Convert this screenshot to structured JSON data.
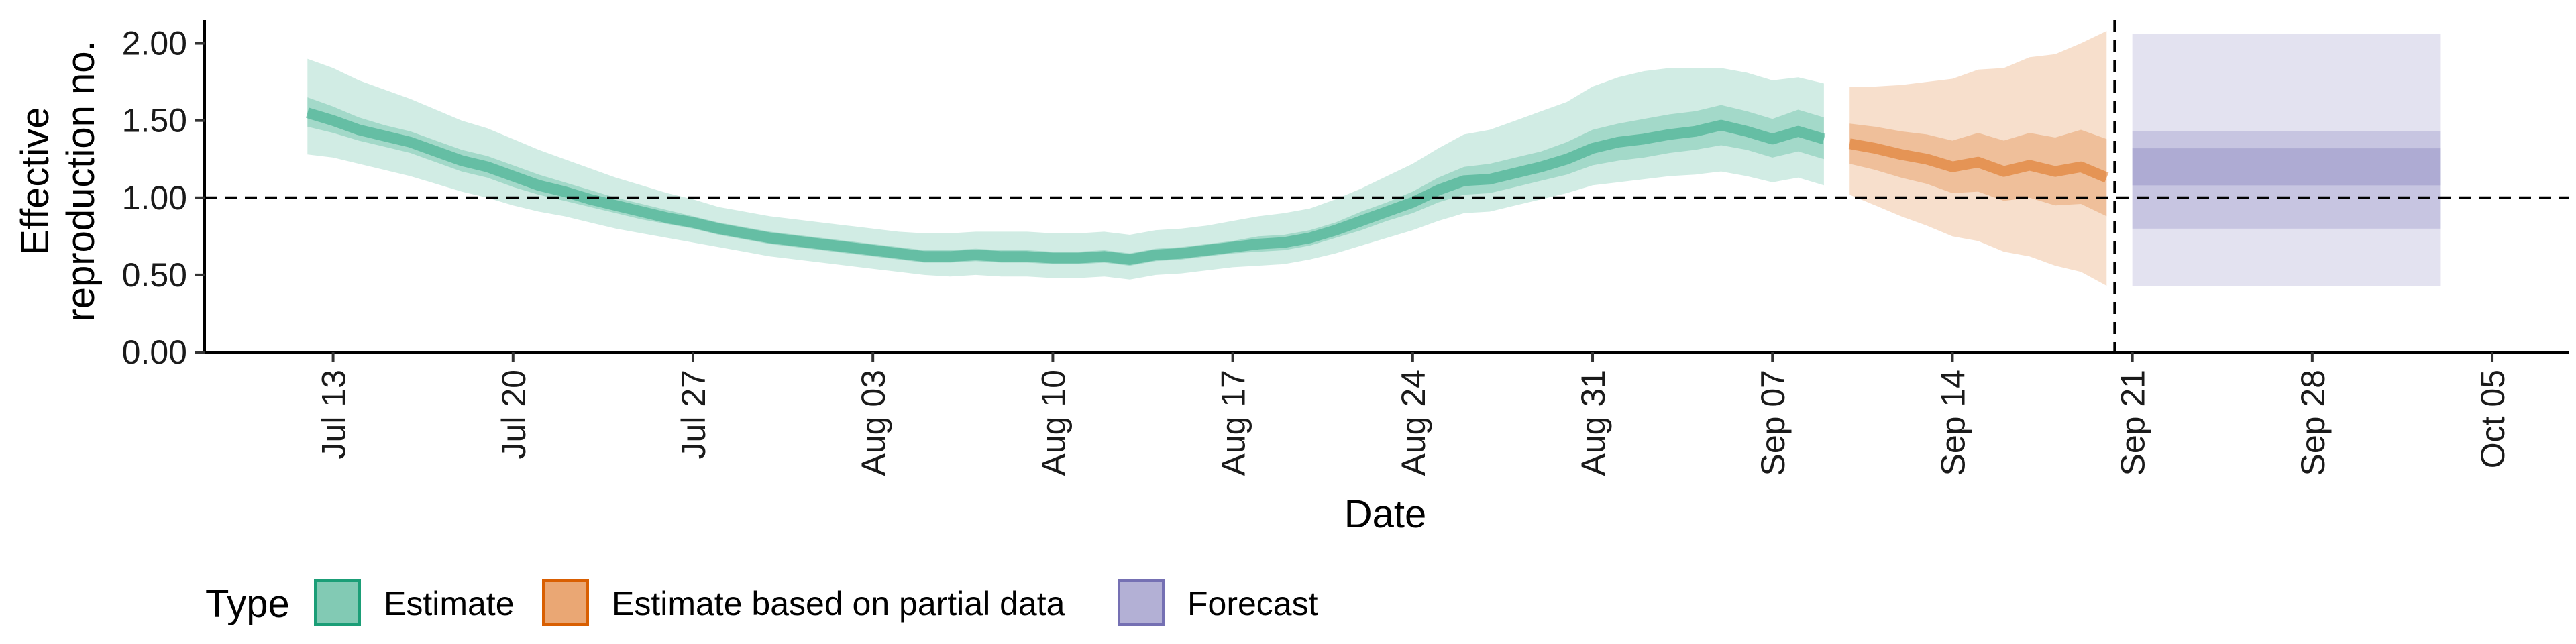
{
  "chart_data": {
    "type": "area",
    "xlabel": "Date",
    "ylabel_lines": [
      "Effective",
      "reproduction no."
    ],
    "ylim": [
      0,
      2.15
    ],
    "y_ticks": [
      0,
      0.5,
      1.0,
      1.5,
      2.0
    ],
    "y_tick_labels": [
      "0.00",
      "0.50",
      "1.00",
      "1.50",
      "2.00"
    ],
    "x_range": [
      "2020-07-08",
      "2020-10-08"
    ],
    "x_ticks": [
      "2020-07-13",
      "2020-07-20",
      "2020-07-27",
      "2020-08-03",
      "2020-08-10",
      "2020-08-17",
      "2020-08-24",
      "2020-08-31",
      "2020-09-07",
      "2020-09-14",
      "2020-09-21",
      "2020-09-28",
      "2020-10-05"
    ],
    "x_tick_labels": [
      "Jul 13",
      "Jul 20",
      "Jul 27",
      "Aug 03",
      "Aug 10",
      "Aug 17",
      "Aug 24",
      "Aug 31",
      "Sep 07",
      "Sep 14",
      "Sep 21",
      "Sep 28",
      "Oct 05"
    ],
    "reference_hline": 1.0,
    "reference_vline": "2020-09-20",
    "grid": false,
    "legend": {
      "title": "Type",
      "position": "bottom-left",
      "entries": [
        {
          "label": "Estimate",
          "fill": "#1b9e77",
          "border": "#1b9e77"
        },
        {
          "label": "Estimate based on partial data",
          "fill": "#d95f02",
          "border": "#d95f02"
        },
        {
          "label": "Forecast",
          "fill": "#7570b3",
          "border": "#7570b3"
        }
      ]
    },
    "series": [
      {
        "name": "Estimate",
        "color": "#1b9e77",
        "x": [
          "2020-07-12",
          "2020-07-13",
          "2020-07-14",
          "2020-07-15",
          "2020-07-16",
          "2020-07-17",
          "2020-07-18",
          "2020-07-19",
          "2020-07-20",
          "2020-07-21",
          "2020-07-22",
          "2020-07-23",
          "2020-07-24",
          "2020-07-25",
          "2020-07-26",
          "2020-07-27",
          "2020-07-28",
          "2020-07-29",
          "2020-07-30",
          "2020-07-31",
          "2020-08-01",
          "2020-08-02",
          "2020-08-03",
          "2020-08-04",
          "2020-08-05",
          "2020-08-06",
          "2020-08-07",
          "2020-08-08",
          "2020-08-09",
          "2020-08-10",
          "2020-08-11",
          "2020-08-12",
          "2020-08-13",
          "2020-08-14",
          "2020-08-15",
          "2020-08-16",
          "2020-08-17",
          "2020-08-18",
          "2020-08-19",
          "2020-08-20",
          "2020-08-21",
          "2020-08-22",
          "2020-08-23",
          "2020-08-24",
          "2020-08-25",
          "2020-08-26",
          "2020-08-27",
          "2020-08-28",
          "2020-08-29",
          "2020-08-30",
          "2020-08-31",
          "2020-09-01",
          "2020-09-02",
          "2020-09-03",
          "2020-09-04",
          "2020-09-05",
          "2020-09-06",
          "2020-09-07",
          "2020-09-08",
          "2020-09-09"
        ],
        "median": [
          1.55,
          1.5,
          1.44,
          1.4,
          1.36,
          1.3,
          1.24,
          1.2,
          1.14,
          1.08,
          1.04,
          0.99,
          0.95,
          0.91,
          0.87,
          0.84,
          0.8,
          0.77,
          0.74,
          0.72,
          0.7,
          0.68,
          0.66,
          0.64,
          0.62,
          0.62,
          0.63,
          0.62,
          0.62,
          0.61,
          0.61,
          0.62,
          0.6,
          0.63,
          0.64,
          0.66,
          0.68,
          0.7,
          0.71,
          0.74,
          0.79,
          0.85,
          0.91,
          0.97,
          1.05,
          1.11,
          1.12,
          1.16,
          1.2,
          1.25,
          1.32,
          1.36,
          1.38,
          1.41,
          1.43,
          1.47,
          1.43,
          1.38,
          1.43,
          1.38
        ],
        "lower50": [
          1.46,
          1.42,
          1.37,
          1.33,
          1.29,
          1.23,
          1.17,
          1.13,
          1.07,
          1.02,
          0.98,
          0.94,
          0.9,
          0.86,
          0.83,
          0.8,
          0.76,
          0.73,
          0.7,
          0.68,
          0.66,
          0.64,
          0.62,
          0.6,
          0.58,
          0.58,
          0.59,
          0.58,
          0.58,
          0.57,
          0.57,
          0.58,
          0.56,
          0.59,
          0.6,
          0.62,
          0.64,
          0.65,
          0.66,
          0.69,
          0.74,
          0.79,
          0.85,
          0.9,
          0.97,
          1.02,
          1.03,
          1.07,
          1.11,
          1.15,
          1.21,
          1.24,
          1.26,
          1.29,
          1.31,
          1.34,
          1.31,
          1.26,
          1.3,
          1.25
        ],
        "upper50": [
          1.65,
          1.59,
          1.52,
          1.47,
          1.43,
          1.37,
          1.31,
          1.27,
          1.21,
          1.15,
          1.1,
          1.05,
          1.0,
          0.96,
          0.92,
          0.88,
          0.84,
          0.81,
          0.78,
          0.76,
          0.74,
          0.72,
          0.7,
          0.68,
          0.66,
          0.66,
          0.67,
          0.66,
          0.66,
          0.65,
          0.65,
          0.66,
          0.64,
          0.67,
          0.68,
          0.7,
          0.72,
          0.75,
          0.76,
          0.79,
          0.84,
          0.91,
          0.97,
          1.04,
          1.13,
          1.2,
          1.22,
          1.26,
          1.3,
          1.36,
          1.44,
          1.48,
          1.51,
          1.54,
          1.56,
          1.6,
          1.56,
          1.51,
          1.57,
          1.52
        ],
        "lower90": [
          1.28,
          1.26,
          1.22,
          1.18,
          1.14,
          1.09,
          1.04,
          1.0,
          0.95,
          0.91,
          0.88,
          0.84,
          0.8,
          0.77,
          0.74,
          0.71,
          0.68,
          0.65,
          0.62,
          0.6,
          0.58,
          0.56,
          0.54,
          0.52,
          0.5,
          0.49,
          0.5,
          0.49,
          0.49,
          0.48,
          0.48,
          0.49,
          0.47,
          0.5,
          0.51,
          0.53,
          0.55,
          0.56,
          0.57,
          0.6,
          0.64,
          0.69,
          0.74,
          0.79,
          0.85,
          0.9,
          0.91,
          0.95,
          0.99,
          1.03,
          1.08,
          1.1,
          1.12,
          1.14,
          1.15,
          1.17,
          1.14,
          1.1,
          1.13,
          1.08
        ],
        "upper90": [
          1.9,
          1.84,
          1.76,
          1.7,
          1.64,
          1.57,
          1.5,
          1.45,
          1.38,
          1.31,
          1.25,
          1.19,
          1.13,
          1.08,
          1.03,
          0.99,
          0.94,
          0.91,
          0.88,
          0.86,
          0.84,
          0.82,
          0.8,
          0.78,
          0.77,
          0.77,
          0.78,
          0.78,
          0.78,
          0.77,
          0.77,
          0.78,
          0.76,
          0.79,
          0.8,
          0.82,
          0.85,
          0.88,
          0.9,
          0.93,
          0.99,
          1.06,
          1.14,
          1.22,
          1.32,
          1.41,
          1.44,
          1.5,
          1.56,
          1.62,
          1.72,
          1.78,
          1.82,
          1.84,
          1.84,
          1.84,
          1.81,
          1.76,
          1.78,
          1.74
        ]
      },
      {
        "name": "Estimate based on partial data",
        "color": "#d95f02",
        "x": [
          "2020-09-10",
          "2020-09-11",
          "2020-09-12",
          "2020-09-13",
          "2020-09-14",
          "2020-09-15",
          "2020-09-16",
          "2020-09-17",
          "2020-09-18",
          "2020-09-19",
          "2020-09-20"
        ],
        "median": [
          1.35,
          1.32,
          1.28,
          1.25,
          1.2,
          1.23,
          1.17,
          1.21,
          1.17,
          1.2,
          1.13
        ],
        "lower50": [
          1.22,
          1.18,
          1.13,
          1.09,
          1.03,
          1.04,
          0.98,
          1.0,
          0.95,
          0.96,
          0.88
        ],
        "upper50": [
          1.48,
          1.46,
          1.43,
          1.41,
          1.37,
          1.42,
          1.37,
          1.42,
          1.39,
          1.44,
          1.38
        ],
        "lower90": [
          1.02,
          0.95,
          0.88,
          0.82,
          0.75,
          0.72,
          0.65,
          0.62,
          0.56,
          0.52,
          0.43
        ],
        "upper90": [
          1.72,
          1.72,
          1.73,
          1.75,
          1.77,
          1.83,
          1.84,
          1.91,
          1.93,
          2.0,
          2.08
        ]
      },
      {
        "name": "Forecast",
        "color": "#7570b3",
        "x": [
          "2020-09-21",
          "2020-10-03"
        ],
        "median": [
          1.2,
          1.2
        ],
        "lower25": [
          1.08,
          1.08
        ],
        "upper25": [
          1.32,
          1.32
        ],
        "lower50": [
          0.8,
          0.8
        ],
        "upper50": [
          1.43,
          1.43
        ],
        "lower90": [
          0.43,
          0.43
        ],
        "upper90": [
          2.06,
          2.06
        ]
      }
    ]
  }
}
